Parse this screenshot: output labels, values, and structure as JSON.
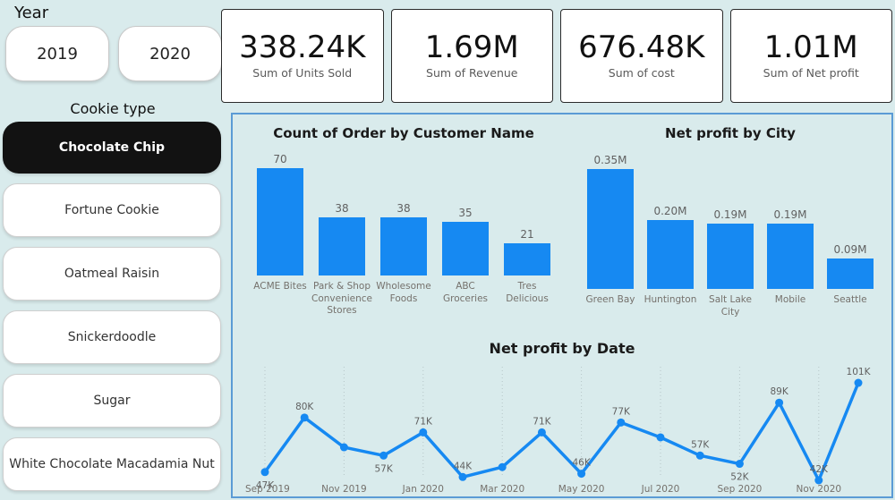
{
  "page": {
    "background": "#d9ebec",
    "accent_blue": "#1689f2",
    "panel_border_blue": "#5b9bd5",
    "selected_filter_bg": "#121212"
  },
  "year_filter": {
    "label": "Year",
    "options": [
      {
        "label": "2019",
        "selected": false
      },
      {
        "label": "2020",
        "selected": false
      }
    ]
  },
  "kpi_cards": [
    {
      "value": "338.24K",
      "label": "Sum of Units Sold"
    },
    {
      "value": "1.69M",
      "label": "Sum of Revenue"
    },
    {
      "value": "676.48K",
      "label": "Sum of cost"
    },
    {
      "value": "1.01M",
      "label": "Sum of Net profit"
    }
  ],
  "cookie_filter": {
    "label": "Cookie type",
    "options": [
      {
        "label": "Chocolate Chip",
        "selected": true
      },
      {
        "label": "Fortune Cookie",
        "selected": false
      },
      {
        "label": "Oatmeal Raisin",
        "selected": false
      },
      {
        "label": "Snickerdoodle",
        "selected": false
      },
      {
        "label": "Sugar",
        "selected": false
      },
      {
        "label": "White Chocolate Macadamia Nut",
        "selected": false
      }
    ]
  },
  "chart_data": [
    {
      "type": "bar",
      "title": "Count of Order by Customer Name",
      "categories": [
        "ACME Bites",
        "Park & Shop Convenience Stores",
        "Wholesome Foods",
        "ABC Groceries",
        "Tres Delicious"
      ],
      "values": [
        70,
        38,
        38,
        35,
        21
      ],
      "data_labels": [
        "70",
        "38",
        "38",
        "35",
        "21"
      ],
      "ylim": [
        0,
        70
      ],
      "grid": false,
      "legend": "none",
      "bar_color": "#1689f2"
    },
    {
      "type": "bar",
      "title": "Net profit by City",
      "categories": [
        "Green Bay",
        "Huntington",
        "Salt Lake City",
        "Mobile",
        "Seattle"
      ],
      "values": [
        0.35,
        0.2,
        0.19,
        0.19,
        0.09
      ],
      "data_labels": [
        "0.35M",
        "0.20M",
        "0.19M",
        "0.19M",
        "0.09M"
      ],
      "ylim": [
        0,
        0.35
      ],
      "grid": false,
      "legend": "none",
      "bar_color": "#1689f2"
    },
    {
      "type": "line",
      "title": "Net profit by Date",
      "x": [
        "Sep 2019",
        "Oct 2019",
        "Nov 2019",
        "Dec 2019",
        "Jan 2020",
        "Feb 2020",
        "Mar 2020",
        "Apr 2020",
        "May 2020",
        "Jun 2020",
        "Jul 2020",
        "Aug 2020",
        "Sep 2020",
        "Oct 2020",
        "Nov 2020",
        "Dec 2020"
      ],
      "values": [
        47,
        80,
        62,
        57,
        71,
        44,
        50,
        71,
        46,
        77,
        68,
        57,
        52,
        89,
        42,
        101
      ],
      "data_labels": [
        "47K",
        "80K",
        "",
        "57K",
        "71K",
        "44K",
        "",
        "71K",
        "46K",
        "77K",
        "",
        "57K",
        "52K",
        "89K",
        "42K",
        "101K"
      ],
      "label_positions": [
        "below",
        "above",
        "",
        "below",
        "above",
        "above",
        "",
        "above",
        "above",
        "above",
        "",
        "above",
        "below",
        "above",
        "above",
        "above"
      ],
      "axis_ticks": [
        "Sep 2019",
        "",
        "Nov 2019",
        "",
        "Jan 2020",
        "",
        "Mar 2020",
        "",
        "May 2020",
        "",
        "Jul 2020",
        "",
        "Sep 2020",
        "",
        "Nov 2020",
        ""
      ],
      "ylim": [
        0,
        110
      ],
      "grid": "vertical-dotted",
      "legend": "none",
      "line_color": "#1689f2"
    }
  ]
}
